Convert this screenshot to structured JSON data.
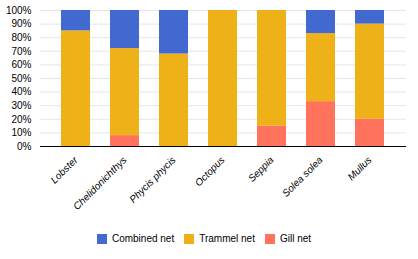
{
  "chart_data": {
    "type": "bar",
    "stacked": true,
    "categories": [
      "Lobster",
      "Chelidonichthys",
      "Phycis phycis",
      "Octopus",
      "Seppia",
      "Solea solea",
      "Mullus"
    ],
    "series": [
      {
        "name": "Gill net",
        "values": [
          0,
          8,
          0,
          0,
          15,
          33,
          20
        ]
      },
      {
        "name": "Trammel net",
        "values": [
          85,
          64,
          68,
          100,
          85,
          50,
          70
        ]
      },
      {
        "name": "Combined net",
        "values": [
          15,
          28,
          32,
          0,
          0,
          17,
          10
        ]
      }
    ],
    "ylim": [
      0,
      100
    ],
    "yticks": [
      {
        "value": 0,
        "label": "0%"
      },
      {
        "value": 10,
        "label": "10%"
      },
      {
        "value": 20,
        "label": "20%"
      },
      {
        "value": 30,
        "label": "30%"
      },
      {
        "value": 40,
        "label": "40%"
      },
      {
        "value": 50,
        "label": "50%"
      },
      {
        "value": 60,
        "label": "60%"
      },
      {
        "value": 70,
        "label": "70%"
      },
      {
        "value": 80,
        "label": "80%"
      },
      {
        "value": 90,
        "label": "90%"
      },
      {
        "value": 100,
        "label": "100%"
      }
    ],
    "grid": true,
    "legend": "bottom"
  }
}
